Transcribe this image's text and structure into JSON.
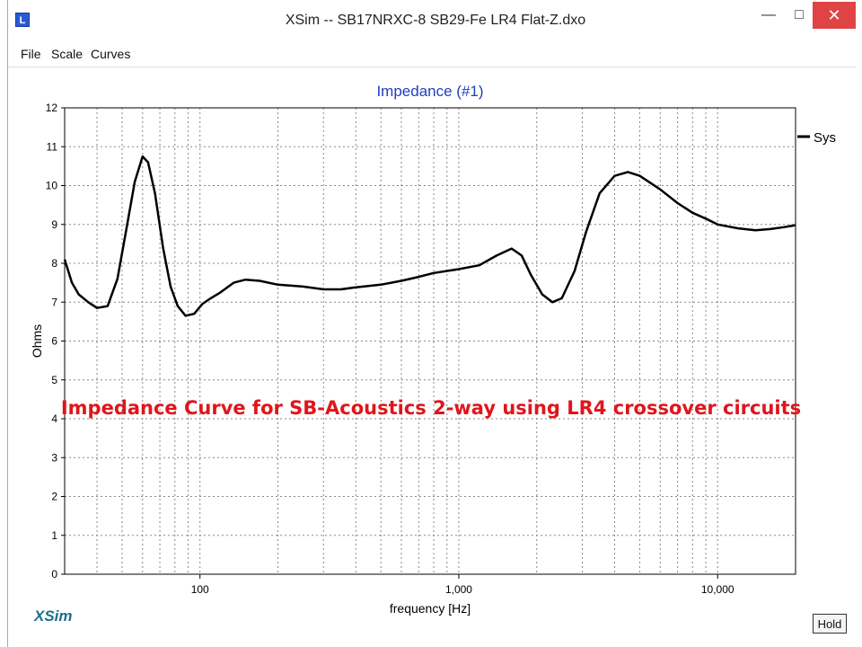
{
  "window": {
    "title": "XSim -- SB17NRXC-8 SB29-Fe LR4 Flat-Z.dxo",
    "minimize_label": "—",
    "maximize_label": "□",
    "close_label": "✕",
    "app_icon": "xsim-app-icon",
    "app_icon_glyph": "L"
  },
  "menu": {
    "items": [
      "File",
      "Scale",
      "Curves"
    ]
  },
  "overlay_caption": "Impedance Curve for SB-Acoustics 2-way using LR4 crossover circuits",
  "logo_text": "XSim",
  "hold_label": "Hold",
  "chart_data": {
    "type": "line",
    "title": "Impedance (#1)",
    "xlabel": "frequency [Hz]",
    "ylabel": "Ohms",
    "x_scale": "log",
    "xlim": [
      30,
      20000
    ],
    "ylim": [
      0,
      12
    ],
    "x_ticks": [
      {
        "value": 100,
        "label": "100"
      },
      {
        "value": 1000,
        "label": "1,000"
      },
      {
        "value": 10000,
        "label": "10,000"
      }
    ],
    "y_ticks": [
      0,
      1,
      2,
      3,
      4,
      5,
      6,
      7,
      8,
      9,
      10,
      11,
      12
    ],
    "grid": true,
    "legend": "right",
    "series": [
      {
        "name": "Sys",
        "color": "#000000",
        "points": [
          [
            30,
            8.1
          ],
          [
            32,
            7.5
          ],
          [
            34,
            7.2
          ],
          [
            37,
            7.0
          ],
          [
            40,
            6.85
          ],
          [
            44,
            6.9
          ],
          [
            48,
            7.6
          ],
          [
            52,
            8.9
          ],
          [
            56,
            10.1
          ],
          [
            60,
            10.75
          ],
          [
            63,
            10.6
          ],
          [
            67,
            9.8
          ],
          [
            72,
            8.4
          ],
          [
            77,
            7.4
          ],
          [
            82,
            6.9
          ],
          [
            88,
            6.65
          ],
          [
            95,
            6.7
          ],
          [
            102,
            6.95
          ],
          [
            110,
            7.1
          ],
          [
            120,
            7.25
          ],
          [
            135,
            7.5
          ],
          [
            150,
            7.58
          ],
          [
            170,
            7.55
          ],
          [
            200,
            7.45
          ],
          [
            250,
            7.4
          ],
          [
            300,
            7.33
          ],
          [
            350,
            7.33
          ],
          [
            400,
            7.38
          ],
          [
            500,
            7.45
          ],
          [
            600,
            7.55
          ],
          [
            700,
            7.65
          ],
          [
            800,
            7.75
          ],
          [
            1000,
            7.85
          ],
          [
            1200,
            7.95
          ],
          [
            1400,
            8.2
          ],
          [
            1600,
            8.38
          ],
          [
            1750,
            8.2
          ],
          [
            1900,
            7.7
          ],
          [
            2100,
            7.2
          ],
          [
            2300,
            7.0
          ],
          [
            2500,
            7.1
          ],
          [
            2800,
            7.8
          ],
          [
            3100,
            8.8
          ],
          [
            3500,
            9.8
          ],
          [
            4000,
            10.25
          ],
          [
            4500,
            10.35
          ],
          [
            5000,
            10.25
          ],
          [
            6000,
            9.9
          ],
          [
            7000,
            9.55
          ],
          [
            8000,
            9.3
          ],
          [
            9000,
            9.15
          ],
          [
            10000,
            9.0
          ],
          [
            12000,
            8.9
          ],
          [
            14000,
            8.85
          ],
          [
            16000,
            8.88
          ],
          [
            18000,
            8.93
          ],
          [
            20000,
            8.98
          ]
        ]
      }
    ]
  }
}
